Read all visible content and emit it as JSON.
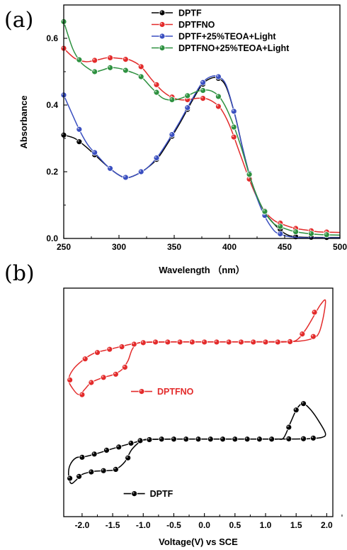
{
  "chart_data": [
    {
      "type": "line",
      "panel_label": "(a)",
      "xlabel": "Wavelength （nm）",
      "ylabel": "Absorbance",
      "xlim": [
        250,
        500
      ],
      "ylim": [
        0,
        0.7
      ],
      "xticks": [
        "250",
        "300",
        "350",
        "400",
        "450",
        "500"
      ],
      "yticks": [
        "0.0",
        "0.2",
        "0.4",
        "0.6"
      ],
      "legend_position": "top-right",
      "grid": false,
      "series": [
        {
          "name": "DPTF",
          "color": "#000000",
          "points": [
            [
              250,
              0.31
            ],
            [
              260,
              0.3
            ],
            [
              270,
              0.275
            ],
            [
              280,
              0.245
            ],
            [
              290,
              0.215
            ],
            [
              300,
              0.19
            ],
            [
              307,
              0.182
            ],
            [
              315,
              0.19
            ],
            [
              325,
              0.21
            ],
            [
              335,
              0.24
            ],
            [
              345,
              0.29
            ],
            [
              355,
              0.345
            ],
            [
              365,
              0.405
            ],
            [
              375,
              0.46
            ],
            [
              383,
              0.48
            ],
            [
              390,
              0.48
            ],
            [
              397,
              0.455
            ],
            [
              405,
              0.37
            ],
            [
              412,
              0.27
            ],
            [
              420,
              0.17
            ],
            [
              430,
              0.09
            ],
            [
              440,
              0.045
            ],
            [
              450,
              0.015
            ],
            [
              460,
              0.005
            ],
            [
              480,
              0.003
            ],
            [
              500,
              0.003
            ]
          ],
          "markers_x": [
            250,
            264,
            278,
            292,
            306,
            320,
            334,
            348,
            362,
            376,
            390,
            404,
            418,
            432,
            446,
            460,
            474,
            488
          ]
        },
        {
          "name": "DPTFNO",
          "color": "#e32b2b",
          "points": [
            [
              250,
              0.57
            ],
            [
              260,
              0.54
            ],
            [
              270,
              0.53
            ],
            [
              280,
              0.535
            ],
            [
              290,
              0.542
            ],
            [
              300,
              0.54
            ],
            [
              310,
              0.535
            ],
            [
              320,
              0.515
            ],
            [
              330,
              0.475
            ],
            [
              340,
              0.44
            ],
            [
              350,
              0.42
            ],
            [
              360,
              0.415
            ],
            [
              370,
              0.42
            ],
            [
              378,
              0.42
            ],
            [
              385,
              0.41
            ],
            [
              392,
              0.39
            ],
            [
              400,
              0.34
            ],
            [
              410,
              0.25
            ],
            [
              420,
              0.16
            ],
            [
              430,
              0.09
            ],
            [
              440,
              0.055
            ],
            [
              450,
              0.04
            ],
            [
              460,
              0.03
            ],
            [
              470,
              0.025
            ],
            [
              480,
              0.02
            ],
            [
              500,
              0.018
            ]
          ],
          "markers_x": [
            250,
            264,
            278,
            292,
            306,
            320,
            334,
            348,
            362,
            376,
            390,
            404,
            418,
            432,
            446,
            460,
            474,
            488
          ]
        },
        {
          "name": "DPTF+25%TEOA+Light",
          "color": "#3a4fc0",
          "points": [
            [
              250,
              0.43
            ],
            [
              258,
              0.37
            ],
            [
              265,
              0.32
            ],
            [
              272,
              0.28
            ],
            [
              280,
              0.25
            ],
            [
              290,
              0.215
            ],
            [
              300,
              0.19
            ],
            [
              307,
              0.182
            ],
            [
              315,
              0.19
            ],
            [
              325,
              0.21
            ],
            [
              335,
              0.245
            ],
            [
              345,
              0.295
            ],
            [
              355,
              0.35
            ],
            [
              365,
              0.41
            ],
            [
              375,
              0.465
            ],
            [
              383,
              0.485
            ],
            [
              390,
              0.485
            ],
            [
              397,
              0.46
            ],
            [
              405,
              0.37
            ],
            [
              412,
              0.27
            ],
            [
              420,
              0.17
            ],
            [
              430,
              0.08
            ],
            [
              440,
              0.025
            ],
            [
              447,
              0.012
            ],
            [
              455,
              0.005
            ],
            [
              470,
              0.002
            ],
            [
              500,
              0.002
            ]
          ],
          "markers_x": [
            250,
            264,
            278,
            292,
            306,
            320,
            334,
            348,
            362,
            376,
            390,
            404,
            418,
            432,
            446
          ]
        },
        {
          "name": "DPTFNO+25%TEOA+Light",
          "color": "#2e9140",
          "points": [
            [
              250,
              0.65
            ],
            [
              258,
              0.57
            ],
            [
              265,
              0.53
            ],
            [
              272,
              0.51
            ],
            [
              278,
              0.5
            ],
            [
              285,
              0.505
            ],
            [
              292,
              0.512
            ],
            [
              300,
              0.51
            ],
            [
              310,
              0.5
            ],
            [
              320,
              0.485
            ],
            [
              330,
              0.45
            ],
            [
              340,
              0.42
            ],
            [
              350,
              0.415
            ],
            [
              360,
              0.425
            ],
            [
              370,
              0.44
            ],
            [
              378,
              0.445
            ],
            [
              385,
              0.44
            ],
            [
              392,
              0.42
            ],
            [
              400,
              0.37
            ],
            [
              410,
              0.28
            ],
            [
              420,
              0.17
            ],
            [
              430,
              0.09
            ],
            [
              440,
              0.045
            ],
            [
              450,
              0.03
            ],
            [
              460,
              0.02
            ],
            [
              480,
              0.012
            ],
            [
              500,
              0.01
            ]
          ],
          "markers_x": [
            250,
            264,
            278,
            292,
            306,
            320,
            334,
            348,
            362,
            376,
            390,
            404,
            418,
            432,
            446,
            460,
            474,
            488
          ]
        }
      ]
    },
    {
      "type": "line",
      "panel_label": "(b)",
      "xlabel": "Voltage(V) vs SCE",
      "ylabel": "",
      "xlim": [
        -2.3,
        2.1
      ],
      "xticks": [
        "-2.0",
        "-1.5",
        "-1.0",
        "-0.5",
        "0.0",
        "0.5",
        "1.0",
        "1.5",
        "2.0"
      ],
      "yticks": [],
      "legend_position": "inline labels",
      "grid": false,
      "series": [
        {
          "name": "DPTFNO",
          "color": "#e32b2b",
          "legend_anchor": [
            -1.2,
            9.8
          ],
          "points": [
            [
              -1.08,
              13.6
            ],
            [
              -1.25,
              13.45
            ],
            [
              -1.55,
              13.1
            ],
            [
              -1.8,
              12.8
            ],
            [
              -2.0,
              12.2
            ],
            [
              -2.15,
              11.5
            ],
            [
              -2.22,
              10.7
            ],
            [
              -2.15,
              10.0
            ],
            [
              -2.05,
              9.55
            ],
            [
              -1.95,
              10.0
            ],
            [
              -1.85,
              10.5
            ],
            [
              -1.65,
              10.9
            ],
            [
              -1.5,
              11.1
            ],
            [
              -1.35,
              11.5
            ],
            [
              -1.25,
              12.2
            ],
            [
              -1.18,
              13.1
            ],
            [
              -1.08,
              13.6
            ],
            [
              -0.9,
              13.65
            ],
            [
              -0.5,
              13.67
            ],
            [
              0.0,
              13.67
            ],
            [
              0.5,
              13.67
            ],
            [
              1.0,
              13.67
            ],
            [
              1.3,
              13.67
            ],
            [
              1.5,
              13.8
            ],
            [
              1.65,
              14.6
            ],
            [
              1.8,
              15.8
            ],
            [
              1.9,
              16.6
            ],
            [
              1.98,
              16.9
            ],
            [
              1.93,
              15.3
            ],
            [
              1.85,
              14.2
            ],
            [
              1.7,
              13.85
            ],
            [
              1.5,
              13.72
            ],
            [
              1.2,
              13.7
            ],
            [
              0.5,
              13.69
            ],
            [
              0.0,
              13.69
            ],
            [
              -0.5,
              13.69
            ],
            [
              -0.9,
              13.67
            ],
            [
              -1.08,
              13.6
            ]
          ],
          "markers": [
            [
              -0.8,
              13.67
            ],
            [
              -0.6,
              13.67
            ],
            [
              -0.4,
              13.67
            ],
            [
              -0.2,
              13.67
            ],
            [
              0.0,
              13.67
            ],
            [
              0.2,
              13.67
            ],
            [
              0.4,
              13.67
            ],
            [
              0.6,
              13.67
            ],
            [
              0.8,
              13.67
            ],
            [
              1.0,
              13.67
            ],
            [
              1.2,
              13.67
            ],
            [
              1.4,
              13.7
            ],
            [
              1.6,
              14.3
            ],
            [
              1.8,
              16.0
            ],
            [
              1.78,
              14.1
            ],
            [
              -1.0,
              13.62
            ],
            [
              -1.15,
              13.5
            ],
            [
              -1.35,
              13.3
            ],
            [
              -1.55,
              13.1
            ],
            [
              -1.75,
              12.85
            ],
            [
              -1.95,
              12.35
            ],
            [
              -2.2,
              10.7
            ],
            [
              -2.0,
              9.55
            ],
            [
              -1.85,
              10.5
            ],
            [
              -1.65,
              10.9
            ],
            [
              -1.45,
              11.15
            ],
            [
              -1.3,
              11.7
            ]
          ]
        },
        {
          "name": "DPTF",
          "color": "#000000",
          "legend_anchor": [
            -1.32,
            1.8
          ],
          "points": [
            [
              -1.0,
              6.0
            ],
            [
              -1.3,
              5.6
            ],
            [
              -1.55,
              5.25
            ],
            [
              -1.75,
              4.95
            ],
            [
              -1.95,
              4.7
            ],
            [
              -2.1,
              4.6
            ],
            [
              -2.2,
              4.0
            ],
            [
              -2.22,
              3.2
            ],
            [
              -2.18,
              2.6
            ],
            [
              -2.1,
              2.85
            ],
            [
              -2.0,
              3.3
            ],
            [
              -1.8,
              3.55
            ],
            [
              -1.6,
              3.6
            ],
            [
              -1.45,
              3.7
            ],
            [
              -1.3,
              4.3
            ],
            [
              -1.18,
              5.3
            ],
            [
              -1.0,
              6.0
            ],
            [
              -0.8,
              6.05
            ],
            [
              -0.5,
              6.07
            ],
            [
              0.0,
              6.07
            ],
            [
              0.5,
              6.07
            ],
            [
              1.0,
              6.07
            ],
            [
              1.2,
              6.07
            ],
            [
              1.3,
              6.2
            ],
            [
              1.42,
              7.5
            ],
            [
              1.52,
              8.5
            ],
            [
              1.62,
              8.85
            ],
            [
              1.75,
              8.3
            ],
            [
              1.88,
              7.4
            ],
            [
              1.98,
              6.5
            ],
            [
              1.92,
              6.2
            ],
            [
              1.7,
              6.1
            ],
            [
              1.5,
              6.08
            ],
            [
              1.0,
              6.08
            ],
            [
              0.5,
              6.08
            ],
            [
              0.0,
              6.08
            ],
            [
              -0.5,
              6.08
            ],
            [
              -0.8,
              6.06
            ],
            [
              -1.0,
              6.0
            ]
          ],
          "markers": [
            [
              -0.9,
              6.03
            ],
            [
              -0.7,
              6.07
            ],
            [
              -0.5,
              6.07
            ],
            [
              -0.3,
              6.07
            ],
            [
              -0.1,
              6.07
            ],
            [
              0.1,
              6.07
            ],
            [
              0.3,
              6.07
            ],
            [
              0.5,
              6.07
            ],
            [
              0.7,
              6.07
            ],
            [
              0.9,
              6.07
            ],
            [
              1.1,
              6.07
            ],
            [
              1.38,
              7.0
            ],
            [
              1.5,
              8.35
            ],
            [
              1.62,
              8.85
            ],
            [
              1.38,
              6.09
            ],
            [
              1.62,
              6.1
            ],
            [
              1.78,
              6.15
            ],
            [
              -1.05,
              5.95
            ],
            [
              -1.2,
              5.75
            ],
            [
              -1.4,
              5.45
            ],
            [
              -1.6,
              5.2
            ],
            [
              -1.8,
              4.9
            ],
            [
              -2.0,
              4.65
            ],
            [
              -2.2,
              3.0
            ],
            [
              -2.05,
              3.15
            ],
            [
              -1.85,
              3.5
            ],
            [
              -1.65,
              3.6
            ],
            [
              -1.45,
              3.7
            ],
            [
              -1.25,
              4.6
            ]
          ]
        }
      ]
    }
  ]
}
